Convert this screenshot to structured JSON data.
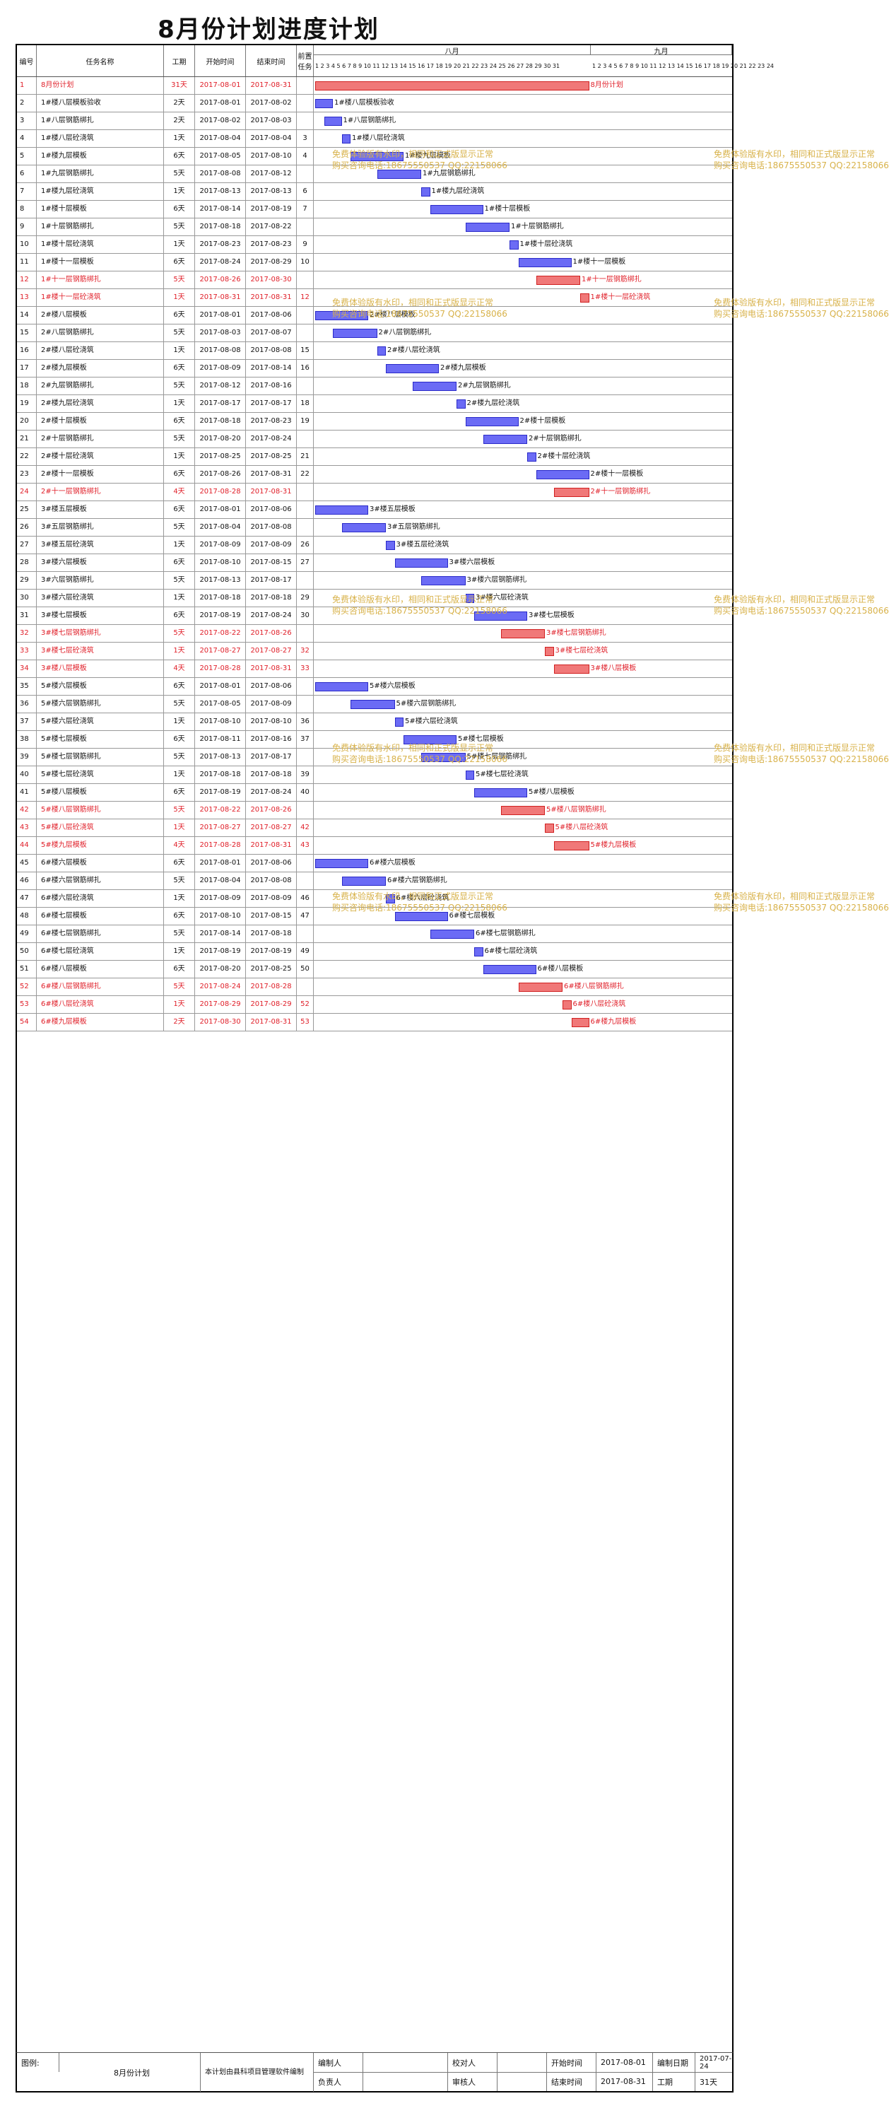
{
  "title": "8月份计划进度计划",
  "headers": {
    "id": "编号",
    "name": "任务名称",
    "duration": "工期",
    "start": "开始时间",
    "end": "结束时间",
    "pred": "前置任务",
    "month_aug": "八月",
    "month_sep": "九月",
    "days_aug": "1 2 3 4 5 6 7 8 9 10 11 12 13 14 15 16 17 18 19 20 21 22 23 24 25 26 27 28 29 30 31",
    "days_sep": "1 2 3 4 5 6 7 8 9 10 11 12 13 14 15 16 17 18 19 20 21 22 23 24"
  },
  "colors": {
    "bar": "#6b6bf5",
    "critical": "#f07878",
    "critical_text": "#e0202a",
    "watermark": "#d8b24a"
  },
  "watermark": {
    "line1": "免费体验版有水印，相同和正式版显示正常",
    "line2": "购买咨询电话:18675550537 QQ:22158066"
  },
  "rows": [
    {
      "id": "1",
      "name": "8月份计划",
      "dur": "31天",
      "start": "2017-08-01",
      "end": "2017-08-31",
      "pred": "",
      "s": 1,
      "e": 31,
      "critical": true,
      "label": "8月份计划"
    },
    {
      "id": "2",
      "name": "1#楼八层模板验收",
      "dur": "2天",
      "start": "2017-08-01",
      "end": "2017-08-02",
      "pred": "",
      "s": 1,
      "e": 2,
      "critical": false,
      "label": "1#楼八层模板验收"
    },
    {
      "id": "3",
      "name": "1#八层钢筋绑扎",
      "dur": "2天",
      "start": "2017-08-02",
      "end": "2017-08-03",
      "pred": "",
      "s": 2,
      "e": 3,
      "critical": false,
      "label": "1#八层钢筋绑扎"
    },
    {
      "id": "4",
      "name": "1#楼八层砼浇筑",
      "dur": "1天",
      "start": "2017-08-04",
      "end": "2017-08-04",
      "pred": "3",
      "s": 4,
      "e": 4,
      "critical": false,
      "label": "1#楼八层砼浇筑"
    },
    {
      "id": "5",
      "name": "1#楼九层模板",
      "dur": "6天",
      "start": "2017-08-05",
      "end": "2017-08-10",
      "pred": "4",
      "s": 5,
      "e": 10,
      "critical": false,
      "label": "1#楼九层模板"
    },
    {
      "id": "6",
      "name": "1#九层钢筋绑扎",
      "dur": "5天",
      "start": "2017-08-08",
      "end": "2017-08-12",
      "pred": "",
      "s": 8,
      "e": 12,
      "critical": false,
      "label": "1#九层钢筋绑扎"
    },
    {
      "id": "7",
      "name": "1#楼九层砼浇筑",
      "dur": "1天",
      "start": "2017-08-13",
      "end": "2017-08-13",
      "pred": "6",
      "s": 13,
      "e": 13,
      "critical": false,
      "label": "1#楼九层砼浇筑"
    },
    {
      "id": "8",
      "name": "1#楼十层模板",
      "dur": "6天",
      "start": "2017-08-14",
      "end": "2017-08-19",
      "pred": "7",
      "s": 14,
      "e": 19,
      "critical": false,
      "label": "1#楼十层模板"
    },
    {
      "id": "9",
      "name": "1#十层钢筋绑扎",
      "dur": "5天",
      "start": "2017-08-18",
      "end": "2017-08-22",
      "pred": "",
      "s": 18,
      "e": 22,
      "critical": false,
      "label": "1#十层钢筋绑扎"
    },
    {
      "id": "10",
      "name": "1#楼十层砼浇筑",
      "dur": "1天",
      "start": "2017-08-23",
      "end": "2017-08-23",
      "pred": "9",
      "s": 23,
      "e": 23,
      "critical": false,
      "label": "1#楼十层砼浇筑"
    },
    {
      "id": "11",
      "name": "1#楼十一层模板",
      "dur": "6天",
      "start": "2017-08-24",
      "end": "2017-08-29",
      "pred": "10",
      "s": 24,
      "e": 29,
      "critical": false,
      "label": "1#楼十一层模板"
    },
    {
      "id": "12",
      "name": "1#十一层钢筋绑扎",
      "dur": "5天",
      "start": "2017-08-26",
      "end": "2017-08-30",
      "pred": "",
      "s": 26,
      "e": 30,
      "critical": true,
      "label": "1#十一层钢筋绑扎"
    },
    {
      "id": "13",
      "name": "1#楼十一层砼浇筑",
      "dur": "1天",
      "start": "2017-08-31",
      "end": "2017-08-31",
      "pred": "12",
      "s": 31,
      "e": 31,
      "critical": true,
      "label": "1#楼十一层砼浇筑"
    },
    {
      "id": "14",
      "name": "2#楼八层模板",
      "dur": "6天",
      "start": "2017-08-01",
      "end": "2017-08-06",
      "pred": "",
      "s": 1,
      "e": 6,
      "critical": false,
      "label": "2#楼八层模板"
    },
    {
      "id": "15",
      "name": "2#八层钢筋绑扎",
      "dur": "5天",
      "start": "2017-08-03",
      "end": "2017-08-07",
      "pred": "",
      "s": 3,
      "e": 7,
      "critical": false,
      "label": "2#八层钢筋绑扎"
    },
    {
      "id": "16",
      "name": "2#楼八层砼浇筑",
      "dur": "1天",
      "start": "2017-08-08",
      "end": "2017-08-08",
      "pred": "15",
      "s": 8,
      "e": 8,
      "critical": false,
      "label": "2#楼八层砼浇筑"
    },
    {
      "id": "17",
      "name": "2#楼九层模板",
      "dur": "6天",
      "start": "2017-08-09",
      "end": "2017-08-14",
      "pred": "16",
      "s": 9,
      "e": 14,
      "critical": false,
      "label": "2#楼九层模板"
    },
    {
      "id": "18",
      "name": "2#九层钢筋绑扎",
      "dur": "5天",
      "start": "2017-08-12",
      "end": "2017-08-16",
      "pred": "",
      "s": 12,
      "e": 16,
      "critical": false,
      "label": "2#九层钢筋绑扎"
    },
    {
      "id": "19",
      "name": "2#楼九层砼浇筑",
      "dur": "1天",
      "start": "2017-08-17",
      "end": "2017-08-17",
      "pred": "18",
      "s": 17,
      "e": 17,
      "critical": false,
      "label": "2#楼九层砼浇筑"
    },
    {
      "id": "20",
      "name": "2#楼十层模板",
      "dur": "6天",
      "start": "2017-08-18",
      "end": "2017-08-23",
      "pred": "19",
      "s": 18,
      "e": 23,
      "critical": false,
      "label": "2#楼十层模板"
    },
    {
      "id": "21",
      "name": "2#十层钢筋绑扎",
      "dur": "5天",
      "start": "2017-08-20",
      "end": "2017-08-24",
      "pred": "",
      "s": 20,
      "e": 24,
      "critical": false,
      "label": "2#十层钢筋绑扎"
    },
    {
      "id": "22",
      "name": "2#楼十层砼浇筑",
      "dur": "1天",
      "start": "2017-08-25",
      "end": "2017-08-25",
      "pred": "21",
      "s": 25,
      "e": 25,
      "critical": false,
      "label": "2#楼十层砼浇筑"
    },
    {
      "id": "23",
      "name": "2#楼十一层模板",
      "dur": "6天",
      "start": "2017-08-26",
      "end": "2017-08-31",
      "pred": "22",
      "s": 26,
      "e": 31,
      "critical": false,
      "label": "2#楼十一层模板"
    },
    {
      "id": "24",
      "name": "2#十一层钢筋绑扎",
      "dur": "4天",
      "start": "2017-08-28",
      "end": "2017-08-31",
      "pred": "",
      "s": 28,
      "e": 31,
      "critical": true,
      "label": "2#十一层钢筋绑扎"
    },
    {
      "id": "25",
      "name": "3#楼五层模板",
      "dur": "6天",
      "start": "2017-08-01",
      "end": "2017-08-06",
      "pred": "",
      "s": 1,
      "e": 6,
      "critical": false,
      "label": "3#楼五层模板"
    },
    {
      "id": "26",
      "name": "3#五层钢筋绑扎",
      "dur": "5天",
      "start": "2017-08-04",
      "end": "2017-08-08",
      "pred": "",
      "s": 4,
      "e": 8,
      "critical": false,
      "label": "3#五层钢筋绑扎"
    },
    {
      "id": "27",
      "name": "3#楼五层砼浇筑",
      "dur": "1天",
      "start": "2017-08-09",
      "end": "2017-08-09",
      "pred": "26",
      "s": 9,
      "e": 9,
      "critical": false,
      "label": "3#楼五层砼浇筑"
    },
    {
      "id": "28",
      "name": "3#楼六层模板",
      "dur": "6天",
      "start": "2017-08-10",
      "end": "2017-08-15",
      "pred": "27",
      "s": 10,
      "e": 15,
      "critical": false,
      "label": "3#楼六层模板"
    },
    {
      "id": "29",
      "name": "3#六层钢筋绑扎",
      "dur": "5天",
      "start": "2017-08-13",
      "end": "2017-08-17",
      "pred": "",
      "s": 13,
      "e": 17,
      "critical": false,
      "label": "3#楼六层钢筋绑扎"
    },
    {
      "id": "30",
      "name": "3#楼六层砼浇筑",
      "dur": "1天",
      "start": "2017-08-18",
      "end": "2017-08-18",
      "pred": "29",
      "s": 18,
      "e": 18,
      "critical": false,
      "label": "3#楼六层砼浇筑"
    },
    {
      "id": "31",
      "name": "3#楼七层模板",
      "dur": "6天",
      "start": "2017-08-19",
      "end": "2017-08-24",
      "pred": "30",
      "s": 19,
      "e": 24,
      "critical": false,
      "label": "3#楼七层模板"
    },
    {
      "id": "32",
      "name": "3#楼七层钢筋绑扎",
      "dur": "5天",
      "start": "2017-08-22",
      "end": "2017-08-26",
      "pred": "",
      "s": 22,
      "e": 26,
      "critical": true,
      "label": "3#楼七层钢筋绑扎"
    },
    {
      "id": "33",
      "name": "3#楼七层砼浇筑",
      "dur": "1天",
      "start": "2017-08-27",
      "end": "2017-08-27",
      "pred": "32",
      "s": 27,
      "e": 27,
      "critical": true,
      "label": "3#楼七层砼浇筑"
    },
    {
      "id": "34",
      "name": "3#楼八层模板",
      "dur": "4天",
      "start": "2017-08-28",
      "end": "2017-08-31",
      "pred": "33",
      "s": 28,
      "e": 31,
      "critical": true,
      "label": "3#楼八层模板"
    },
    {
      "id": "35",
      "name": "5#楼六层模板",
      "dur": "6天",
      "start": "2017-08-01",
      "end": "2017-08-06",
      "pred": "",
      "s": 1,
      "e": 6,
      "critical": false,
      "label": "5#楼六层模板"
    },
    {
      "id": "36",
      "name": "5#楼六层钢筋绑扎",
      "dur": "5天",
      "start": "2017-08-05",
      "end": "2017-08-09",
      "pred": "",
      "s": 5,
      "e": 9,
      "critical": false,
      "label": "5#楼六层钢筋绑扎"
    },
    {
      "id": "37",
      "name": "5#楼六层砼浇筑",
      "dur": "1天",
      "start": "2017-08-10",
      "end": "2017-08-10",
      "pred": "36",
      "s": 10,
      "e": 10,
      "critical": false,
      "label": "5#楼六层砼浇筑"
    },
    {
      "id": "38",
      "name": "5#楼七层模板",
      "dur": "6天",
      "start": "2017-08-11",
      "end": "2017-08-16",
      "pred": "37",
      "s": 11,
      "e": 16,
      "critical": false,
      "label": "5#楼七层模板"
    },
    {
      "id": "39",
      "name": "5#楼七层钢筋绑扎",
      "dur": "5天",
      "start": "2017-08-13",
      "end": "2017-08-17",
      "pred": "",
      "s": 13,
      "e": 17,
      "critical": false,
      "label": "5#楼七层钢筋绑扎"
    },
    {
      "id": "40",
      "name": "5#楼七层砼浇筑",
      "dur": "1天",
      "start": "2017-08-18",
      "end": "2017-08-18",
      "pred": "39",
      "s": 18,
      "e": 18,
      "critical": false,
      "label": "5#楼七层砼浇筑"
    },
    {
      "id": "41",
      "name": "5#楼八层模板",
      "dur": "6天",
      "start": "2017-08-19",
      "end": "2017-08-24",
      "pred": "40",
      "s": 19,
      "e": 24,
      "critical": false,
      "label": "5#楼八层模板"
    },
    {
      "id": "42",
      "name": "5#楼八层钢筋绑扎",
      "dur": "5天",
      "start": "2017-08-22",
      "end": "2017-08-26",
      "pred": "",
      "s": 22,
      "e": 26,
      "critical": true,
      "label": "5#楼八层钢筋绑扎"
    },
    {
      "id": "43",
      "name": "5#楼八层砼浇筑",
      "dur": "1天",
      "start": "2017-08-27",
      "end": "2017-08-27",
      "pred": "42",
      "s": 27,
      "e": 27,
      "critical": true,
      "label": "5#楼八层砼浇筑"
    },
    {
      "id": "44",
      "name": "5#楼九层模板",
      "dur": "4天",
      "start": "2017-08-28",
      "end": "2017-08-31",
      "pred": "43",
      "s": 28,
      "e": 31,
      "critical": true,
      "label": "5#楼九层模板"
    },
    {
      "id": "45",
      "name": "6#楼六层模板",
      "dur": "6天",
      "start": "2017-08-01",
      "end": "2017-08-06",
      "pred": "",
      "s": 1,
      "e": 6,
      "critical": false,
      "label": "6#楼六层模板"
    },
    {
      "id": "46",
      "name": "6#楼六层钢筋绑扎",
      "dur": "5天",
      "start": "2017-08-04",
      "end": "2017-08-08",
      "pred": "",
      "s": 4,
      "e": 8,
      "critical": false,
      "label": "6#楼六层钢筋绑扎"
    },
    {
      "id": "47",
      "name": "6#楼六层砼浇筑",
      "dur": "1天",
      "start": "2017-08-09",
      "end": "2017-08-09",
      "pred": "46",
      "s": 9,
      "e": 9,
      "critical": false,
      "label": "6#楼六层砼浇筑"
    },
    {
      "id": "48",
      "name": "6#楼七层模板",
      "dur": "6天",
      "start": "2017-08-10",
      "end": "2017-08-15",
      "pred": "47",
      "s": 10,
      "e": 15,
      "critical": false,
      "label": "6#楼七层模板"
    },
    {
      "id": "49",
      "name": "6#楼七层钢筋绑扎",
      "dur": "5天",
      "start": "2017-08-14",
      "end": "2017-08-18",
      "pred": "",
      "s": 14,
      "e": 18,
      "critical": false,
      "label": "6#楼七层钢筋绑扎"
    },
    {
      "id": "50",
      "name": "6#楼七层砼浇筑",
      "dur": "1天",
      "start": "2017-08-19",
      "end": "2017-08-19",
      "pred": "49",
      "s": 19,
      "e": 19,
      "critical": false,
      "label": "6#楼七层砼浇筑"
    },
    {
      "id": "51",
      "name": "6#楼八层模板",
      "dur": "6天",
      "start": "2017-08-20",
      "end": "2017-08-25",
      "pred": "50",
      "s": 20,
      "e": 25,
      "critical": false,
      "label": "6#楼八层模板"
    },
    {
      "id": "52",
      "name": "6#楼八层钢筋绑扎",
      "dur": "5天",
      "start": "2017-08-24",
      "end": "2017-08-28",
      "pred": "",
      "s": 24,
      "e": 28,
      "critical": true,
      "label": "6#楼八层钢筋绑扎"
    },
    {
      "id": "53",
      "name": "6#楼八层砼浇筑",
      "dur": "1天",
      "start": "2017-08-29",
      "end": "2017-08-29",
      "pred": "52",
      "s": 29,
      "e": 29,
      "critical": true,
      "label": "6#楼八层砼浇筑"
    },
    {
      "id": "54",
      "name": "6#楼九层模板",
      "dur": "2天",
      "start": "2017-08-30",
      "end": "2017-08-31",
      "pred": "53",
      "s": 30,
      "e": 31,
      "critical": true,
      "label": "6#楼九层模板"
    }
  ],
  "footer": {
    "chart_label": "图例:",
    "project_name": "8月份计划",
    "software": "本计划由县科项目管理软件编制",
    "compiler_label": "编制人",
    "reviewer_label": "校对人",
    "owner_label": "负责人",
    "approver_label": "审核人",
    "start_label": "开始时间",
    "start_value": "2017-08-01",
    "made_label": "编制日期",
    "made_value": "2017-07-24",
    "end_label": "结束时间",
    "end_value": "2017-08-31",
    "dur_label": "工期",
    "dur_value": "31天"
  }
}
